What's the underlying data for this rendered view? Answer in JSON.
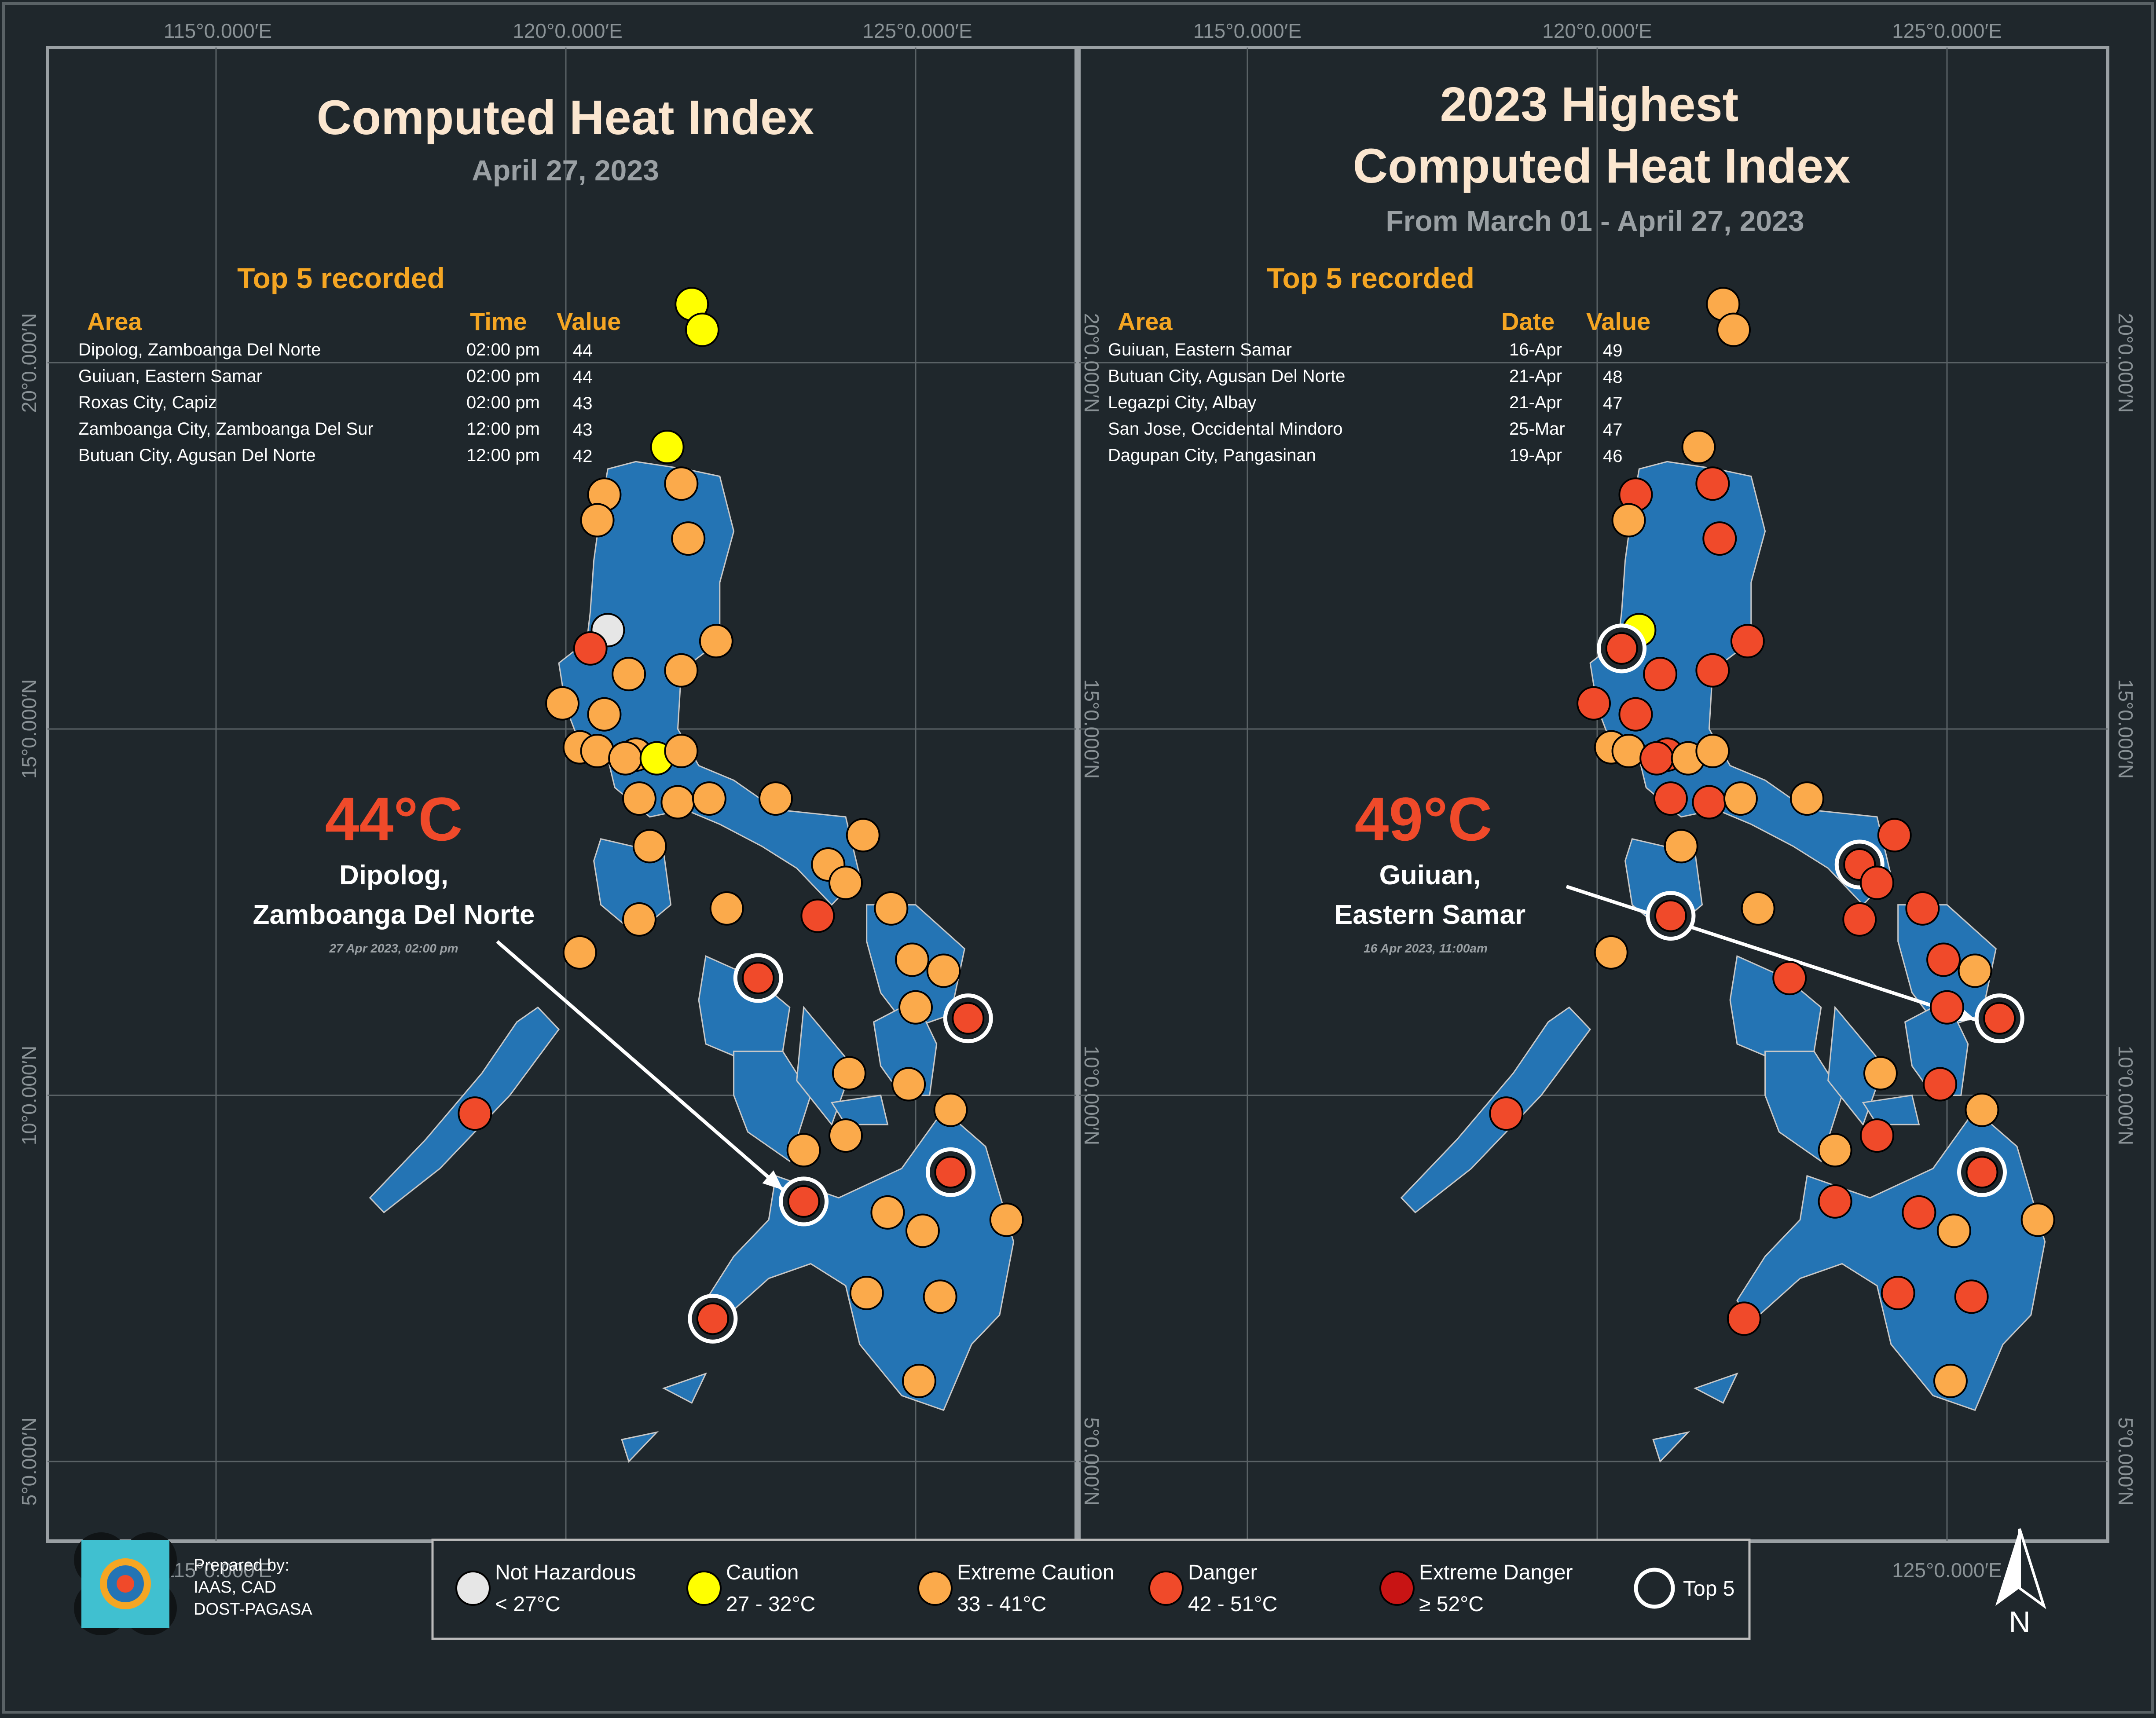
{
  "coordinates": {
    "lon_labels": [
      "115°0.000′E",
      "120°0.000′E",
      "125°0.000′E"
    ],
    "lat_labels": [
      "20°0.000′N",
      "15°0.000′N",
      "10°0.000′N",
      "5°0.000′N"
    ]
  },
  "left_panel": {
    "title_lines": [
      "Computed Heat Index"
    ],
    "subtitle": "April 27, 2023",
    "top5_title": "Top 5 recorded",
    "columns": [
      "Area",
      "Time",
      "Value"
    ],
    "rows": [
      {
        "area": "Dipolog, Zamboanga Del Norte",
        "time": "02:00 pm",
        "value": "44"
      },
      {
        "area": "Guiuan, Eastern Samar",
        "time": "02:00 pm",
        "value": "44"
      },
      {
        "area": "Roxas City, Capiz",
        "time": "02:00 pm",
        "value": "43"
      },
      {
        "area": "Zamboanga City, Zamboanga Del Sur",
        "time": "12:00 pm",
        "value": "43"
      },
      {
        "area": "Butuan City, Agusan Del Norte",
        "time": "12:00 pm",
        "value": "42"
      }
    ],
    "highlight": {
      "value": "44°C",
      "line1": "Dipolog,",
      "line2": "Zamboanga Del Norte",
      "stamp": "27 Apr 2023, 02:00 pm"
    },
    "stations": [
      {
        "c": "caution",
        "lon": 121.8,
        "lat": 20.8
      },
      {
        "c": "caution",
        "lon": 121.95,
        "lat": 20.45
      },
      {
        "c": "caution",
        "lon": 121.45,
        "lat": 18.85
      },
      {
        "c": "extreme_caution",
        "lon": 120.55,
        "lat": 18.2
      },
      {
        "c": "extreme_caution",
        "lon": 120.45,
        "lat": 17.85
      },
      {
        "c": "extreme_caution",
        "lon": 121.65,
        "lat": 18.35
      },
      {
        "c": "extreme_caution",
        "lon": 121.75,
        "lat": 17.6
      },
      {
        "c": "not_hazardous",
        "lon": 120.6,
        "lat": 16.35
      },
      {
        "c": "danger",
        "lon": 120.35,
        "lat": 16.1
      },
      {
        "c": "extreme_caution",
        "lon": 122.15,
        "lat": 16.2
      },
      {
        "c": "extreme_caution",
        "lon": 120.9,
        "lat": 15.75
      },
      {
        "c": "extreme_caution",
        "lon": 121.65,
        "lat": 15.8
      },
      {
        "c": "extreme_caution",
        "lon": 119.95,
        "lat": 15.35
      },
      {
        "c": "extreme_caution",
        "lon": 120.55,
        "lat": 15.2
      },
      {
        "c": "extreme_caution",
        "lon": 120.2,
        "lat": 14.75
      },
      {
        "c": "extreme_caution",
        "lon": 120.45,
        "lat": 14.7
      },
      {
        "c": "extreme_caution",
        "lon": 121.0,
        "lat": 14.65
      },
      {
        "c": "extreme_caution",
        "lon": 120.85,
        "lat": 14.6
      },
      {
        "c": "caution",
        "lon": 121.3,
        "lat": 14.6
      },
      {
        "c": "extreme_caution",
        "lon": 121.65,
        "lat": 14.7
      },
      {
        "c": "extreme_caution",
        "lon": 121.05,
        "lat": 14.05
      },
      {
        "c": "extreme_caution",
        "lon": 121.6,
        "lat": 14.0
      },
      {
        "c": "extreme_caution",
        "lon": 122.05,
        "lat": 14.05
      },
      {
        "c": "extreme_caution",
        "lon": 123.0,
        "lat": 14.05
      },
      {
        "c": "extreme_caution",
        "lon": 124.25,
        "lat": 13.55
      },
      {
        "c": "extreme_caution",
        "lon": 121.2,
        "lat": 13.4
      },
      {
        "c": "extreme_caution",
        "lon": 123.75,
        "lat": 13.15
      },
      {
        "c": "extreme_caution",
        "lon": 124.0,
        "lat": 12.9
      },
      {
        "c": "extreme_caution",
        "lon": 122.3,
        "lat": 12.55
      },
      {
        "c": "danger",
        "lon": 123.6,
        "lat": 12.45
      },
      {
        "c": "extreme_caution",
        "lon": 124.65,
        "lat": 12.55
      },
      {
        "c": "extreme_caution",
        "lon": 121.05,
        "lat": 12.4
      },
      {
        "c": "extreme_caution",
        "lon": 120.2,
        "lat": 11.95
      },
      {
        "c": "extreme_caution",
        "lon": 124.95,
        "lat": 11.85
      },
      {
        "c": "extreme_caution",
        "lon": 125.4,
        "lat": 11.7
      },
      {
        "c": "top5",
        "lon": 122.75,
        "lat": 11.6
      },
      {
        "c": "extreme_caution",
        "lon": 125.0,
        "lat": 11.2
      },
      {
        "c": "top5",
        "lon": 125.75,
        "lat": 11.05
      },
      {
        "c": "danger",
        "lon": 118.7,
        "lat": 9.75
      },
      {
        "c": "extreme_caution",
        "lon": 124.05,
        "lat": 10.3
      },
      {
        "c": "extreme_caution",
        "lon": 124.9,
        "lat": 10.15
      },
      {
        "c": "extreme_caution",
        "lon": 125.5,
        "lat": 9.8
      },
      {
        "c": "extreme_caution",
        "lon": 124.0,
        "lat": 9.45
      },
      {
        "c": "extreme_caution",
        "lon": 123.4,
        "lat": 9.25
      },
      {
        "c": "top5",
        "lon": 125.5,
        "lat": 8.95
      },
      {
        "c": "top5",
        "lon": 123.4,
        "lat": 8.55
      },
      {
        "c": "extreme_caution",
        "lon": 124.6,
        "lat": 8.4
      },
      {
        "c": "extreme_caution",
        "lon": 125.1,
        "lat": 8.15
      },
      {
        "c": "extreme_caution",
        "lon": 126.3,
        "lat": 8.3
      },
      {
        "c": "extreme_caution",
        "lon": 124.3,
        "lat": 7.3
      },
      {
        "c": "extreme_caution",
        "lon": 125.35,
        "lat": 7.25
      },
      {
        "c": "top5",
        "lon": 122.1,
        "lat": 6.95
      },
      {
        "c": "extreme_caution",
        "lon": 125.05,
        "lat": 6.1
      }
    ]
  },
  "right_panel": {
    "title_lines": [
      "2023 Highest",
      "Computed Heat Index"
    ],
    "subtitle": "From March 01 - April 27, 2023",
    "top5_title": "Top 5 recorded",
    "columns": [
      "Area",
      "Date",
      "Value"
    ],
    "rows": [
      {
        "area": "Guiuan, Eastern Samar",
        "time": "16-Apr",
        "value": "49"
      },
      {
        "area": "Butuan City, Agusan Del Norte",
        "time": "21-Apr",
        "value": "48"
      },
      {
        "area": "Legazpi City, Albay",
        "time": "21-Apr",
        "value": "47"
      },
      {
        "area": "San Jose, Occidental Mindoro",
        "time": "25-Mar",
        "value": "47"
      },
      {
        "area": "Dagupan City, Pangasinan",
        "time": "19-Apr",
        "value": "46"
      }
    ],
    "highlight": {
      "value": "49°C",
      "line1": "Guiuan,",
      "line2": "Eastern Samar",
      "stamp": "16 Apr 2023, 11:00am"
    },
    "stations": [
      {
        "c": "extreme_caution",
        "lon": 121.8,
        "lat": 20.8
      },
      {
        "c": "extreme_caution",
        "lon": 121.95,
        "lat": 20.45
      },
      {
        "c": "extreme_caution",
        "lon": 121.45,
        "lat": 18.85
      },
      {
        "c": "danger",
        "lon": 120.55,
        "lat": 18.2
      },
      {
        "c": "extreme_caution",
        "lon": 120.45,
        "lat": 17.85
      },
      {
        "c": "danger",
        "lon": 121.65,
        "lat": 18.35
      },
      {
        "c": "danger",
        "lon": 121.75,
        "lat": 17.6
      },
      {
        "c": "caution",
        "lon": 120.6,
        "lat": 16.35
      },
      {
        "c": "top5",
        "lon": 120.35,
        "lat": 16.1
      },
      {
        "c": "danger",
        "lon": 122.15,
        "lat": 16.2
      },
      {
        "c": "danger",
        "lon": 120.9,
        "lat": 15.75
      },
      {
        "c": "danger",
        "lon": 121.65,
        "lat": 15.8
      },
      {
        "c": "danger",
        "lon": 119.95,
        "lat": 15.35
      },
      {
        "c": "danger",
        "lon": 120.55,
        "lat": 15.2
      },
      {
        "c": "extreme_caution",
        "lon": 120.2,
        "lat": 14.75
      },
      {
        "c": "extreme_caution",
        "lon": 120.45,
        "lat": 14.7
      },
      {
        "c": "danger",
        "lon": 121.0,
        "lat": 14.65
      },
      {
        "c": "danger",
        "lon": 120.85,
        "lat": 14.6
      },
      {
        "c": "extreme_caution",
        "lon": 121.3,
        "lat": 14.6
      },
      {
        "c": "extreme_caution",
        "lon": 121.65,
        "lat": 14.7
      },
      {
        "c": "danger",
        "lon": 121.05,
        "lat": 14.05
      },
      {
        "c": "danger",
        "lon": 121.6,
        "lat": 14.0
      },
      {
        "c": "extreme_caution",
        "lon": 122.05,
        "lat": 14.05
      },
      {
        "c": "extreme_caution",
        "lon": 123.0,
        "lat": 14.05
      },
      {
        "c": "danger",
        "lon": 124.25,
        "lat": 13.55
      },
      {
        "c": "extreme_caution",
        "lon": 121.2,
        "lat": 13.4
      },
      {
        "c": "top5",
        "lon": 123.75,
        "lat": 13.15
      },
      {
        "c": "danger",
        "lon": 124.0,
        "lat": 12.9
      },
      {
        "c": "extreme_caution",
        "lon": 122.3,
        "lat": 12.55
      },
      {
        "c": "top5",
        "lon": 121.05,
        "lat": 12.45
      },
      {
        "c": "danger",
        "lon": 124.65,
        "lat": 12.55
      },
      {
        "c": "danger",
        "lon": 123.75,
        "lat": 12.4
      },
      {
        "c": "extreme_caution",
        "lon": 120.2,
        "lat": 11.95
      },
      {
        "c": "danger",
        "lon": 124.95,
        "lat": 11.85
      },
      {
        "c": "extreme_caution",
        "lon": 125.4,
        "lat": 11.7
      },
      {
        "c": "danger",
        "lon": 122.75,
        "lat": 11.6
      },
      {
        "c": "danger",
        "lon": 125.0,
        "lat": 11.2
      },
      {
        "c": "top5",
        "lon": 125.75,
        "lat": 11.05
      },
      {
        "c": "danger",
        "lon": 118.7,
        "lat": 9.75
      },
      {
        "c": "extreme_caution",
        "lon": 124.05,
        "lat": 10.3
      },
      {
        "c": "danger",
        "lon": 124.9,
        "lat": 10.15
      },
      {
        "c": "extreme_caution",
        "lon": 125.5,
        "lat": 9.8
      },
      {
        "c": "danger",
        "lon": 124.0,
        "lat": 9.45
      },
      {
        "c": "extreme_caution",
        "lon": 123.4,
        "lat": 9.25
      },
      {
        "c": "top5",
        "lon": 125.5,
        "lat": 8.95
      },
      {
        "c": "danger",
        "lon": 123.4,
        "lat": 8.55
      },
      {
        "c": "danger",
        "lon": 124.6,
        "lat": 8.4
      },
      {
        "c": "extreme_caution",
        "lon": 125.1,
        "lat": 8.15
      },
      {
        "c": "extreme_caution",
        "lon": 126.3,
        "lat": 8.3
      },
      {
        "c": "danger",
        "lon": 124.3,
        "lat": 7.3
      },
      {
        "c": "danger",
        "lon": 125.35,
        "lat": 7.25
      },
      {
        "c": "danger",
        "lon": 122.1,
        "lat": 6.95
      },
      {
        "c": "extreme_caution",
        "lon": 125.05,
        "lat": 6.1
      }
    ]
  },
  "legend": [
    {
      "key": "not_hazardous",
      "label": "Not Hazardous",
      "range": "< 27°C",
      "color": "#e6e6e6"
    },
    {
      "key": "caution",
      "label": "Caution",
      "range": "27 - 32°C",
      "color": "#ffff00"
    },
    {
      "key": "extreme_caution",
      "label": "Extreme Caution",
      "range": "33 - 41°C",
      "color": "#fbaa4b"
    },
    {
      "key": "danger",
      "label": "Danger",
      "range": "42 - 51°C",
      "color": "#f04a2a"
    },
    {
      "key": "extreme_danger",
      "label": "Extreme Danger",
      "range": "≥ 52°C",
      "color": "#c81414"
    },
    {
      "key": "top5",
      "label": "Top 5",
      "range": "",
      "color": "#f04a2a"
    }
  ],
  "credit": {
    "line1": "Prepared by:",
    "line2": "IAAS, CAD",
    "line3": "DOST-PAGASA"
  },
  "north_label": "N",
  "colors": {
    "background": "#1f272c",
    "land": "#2474b4",
    "border": "#c8c8c8",
    "grid": "#5a6266",
    "accent": "#f5a623"
  },
  "icons": [
    "pagasa-logo-icon",
    "north-arrow-icon"
  ]
}
